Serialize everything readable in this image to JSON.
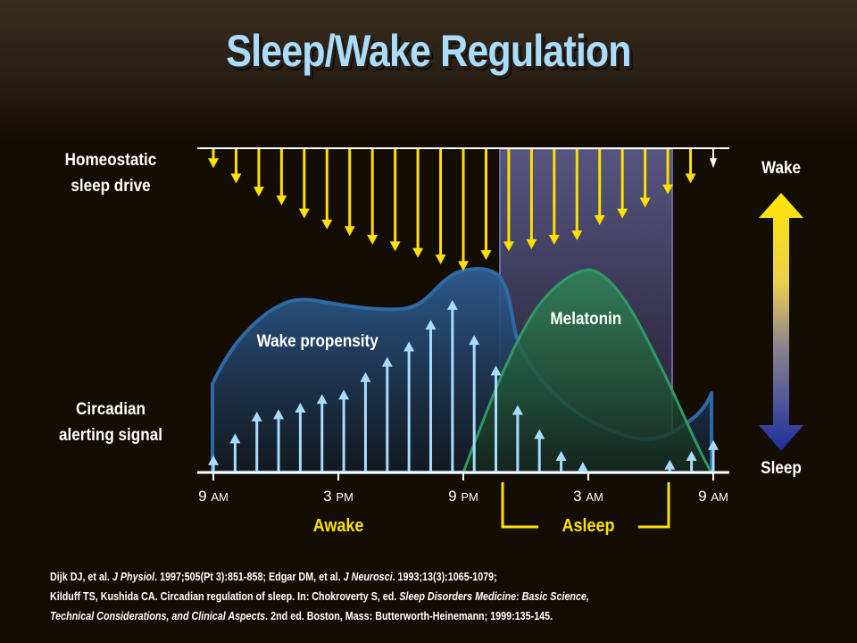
{
  "title": "Sleep/Wake Regulation",
  "left_labels": {
    "homeostatic": [
      "Homeostatic",
      "sleep drive"
    ],
    "circadian": [
      "Circadian",
      "alerting signal"
    ]
  },
  "right_scale": {
    "top_label": "Wake",
    "bottom_label": "Sleep",
    "gradient_top": "#ffe600",
    "gradient_bottom": "#1c2e9e"
  },
  "curves": {
    "wake_propensity": {
      "label": "Wake propensity",
      "color": "#2e6aa6"
    },
    "melatonin": {
      "label": "Melatonin",
      "color": "#2e9a63"
    }
  },
  "x_axis": {
    "ticks": [
      {
        "num": "9",
        "unit": "AM"
      },
      {
        "num": "3",
        "unit": "PM"
      },
      {
        "num": "9",
        "unit": "PM"
      },
      {
        "num": "3",
        "unit": "AM"
      },
      {
        "num": "9",
        "unit": "AM"
      }
    ],
    "states": {
      "awake": "Awake",
      "asleep": "Asleep"
    }
  },
  "colors": {
    "homeostatic_arrow": "#ffe000",
    "circadian_arrow": "#a8dcff",
    "sleep_window": "#4a4a78",
    "title": "#a9dcff"
  },
  "chart_data": {
    "type": "diagram",
    "title": "Sleep/Wake Regulation",
    "x_ticks": [
      "9 AM",
      "3 PM",
      "9 PM",
      "3 AM",
      "9 AM"
    ],
    "sleep_window": {
      "start": "~11:30 PM",
      "end": "~7:30 AM"
    },
    "homeostatic_sleep_drive_relative_length": [
      5,
      12,
      18,
      22,
      28,
      33,
      36,
      40,
      43,
      46,
      49,
      52,
      47,
      43,
      42,
      40,
      38,
      31,
      28,
      23,
      17,
      12,
      5
    ],
    "circadian_alerting_signal_relative_height": [
      7,
      17,
      27,
      28,
      31,
      35,
      37,
      45,
      52,
      59,
      69,
      78,
      62,
      48,
      30,
      19,
      9,
      4,
      0,
      0,
      0,
      5,
      9,
      14
    ],
    "wake_propensity": "rises from 9 AM, plateau midday, peak just before 9 PM, falls during sleep, rises again near 9 AM",
    "melatonin": "rises from 9 PM, peaks ~3 AM, returns to baseline ~9 AM"
  },
  "references": [
    {
      "parts": [
        [
          "Dijk DJ, et al. ",
          false
        ],
        [
          "J Physiol",
          true
        ],
        [
          ". 1997;505(Pt 3):851-858;  Edgar DM, et al. ",
          false
        ],
        [
          "J Neurosci",
          true
        ],
        [
          ". 1993;13(3):1065-1079;",
          false
        ]
      ]
    },
    {
      "parts": [
        [
          "Kilduff TS, Kushida CA. Circadian regulation of sleep. In: Chokroverty S, ed. ",
          false
        ],
        [
          "Sleep Disorders Medicine: Basic Science,",
          true
        ]
      ]
    },
    {
      "parts": [
        [
          "Technical Considerations, and Clinical Aspects",
          true
        ],
        [
          ". 2nd ed. Boston, Mass: Butterworth-Heinemann;  1999:135-145.",
          false
        ]
      ]
    }
  ]
}
